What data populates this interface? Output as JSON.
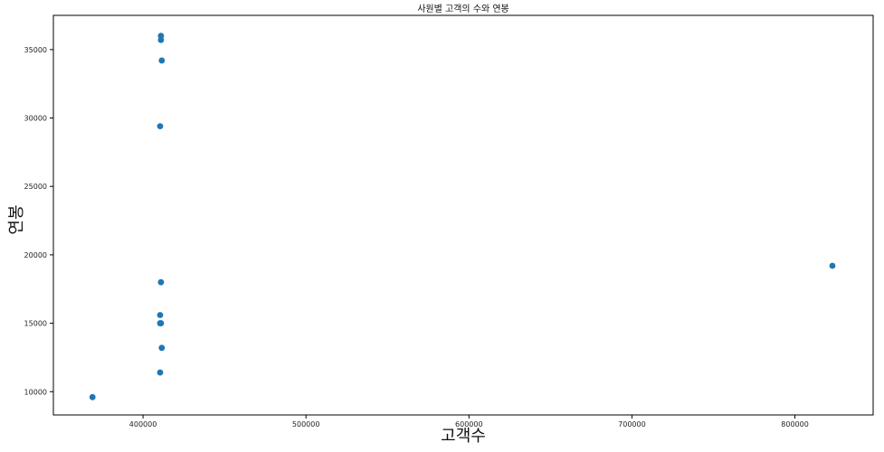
{
  "chart_data": {
    "type": "scatter",
    "title": "사원별 고객의 수와 연봉",
    "xlabel": "고객수",
    "ylabel": "연봉",
    "xlim": [
      345000,
      848000
    ],
    "ylim": [
      8300,
      37500
    ],
    "xticks": [
      400000,
      500000,
      600000,
      700000,
      800000
    ],
    "xtick_labels": [
      "400000",
      "500000",
      "600000",
      "700000",
      "800000"
    ],
    "yticks": [
      10000,
      15000,
      20000,
      25000,
      30000,
      35000
    ],
    "ytick_labels": [
      "10000",
      "15000",
      "20000",
      "25000",
      "30000",
      "35000"
    ],
    "grid": false,
    "marker_color": "#1f77b4",
    "series": [
      {
        "points": [
          {
            "x": 369000,
            "y": 9600
          },
          {
            "x": 410500,
            "y": 11400
          },
          {
            "x": 411500,
            "y": 13200
          },
          {
            "x": 410500,
            "y": 15000
          },
          {
            "x": 411000,
            "y": 15000
          },
          {
            "x": 410500,
            "y": 15600
          },
          {
            "x": 411000,
            "y": 18000
          },
          {
            "x": 410500,
            "y": 29400
          },
          {
            "x": 411500,
            "y": 34200
          },
          {
            "x": 411000,
            "y": 35700
          },
          {
            "x": 411000,
            "y": 36000
          },
          {
            "x": 823000,
            "y": 19200
          }
        ]
      }
    ]
  }
}
